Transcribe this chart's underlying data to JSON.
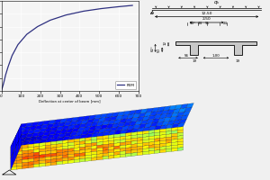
{
  "fig_bg": "#f0f0f0",
  "chart_bg": "#f5f5f5",
  "curve_color": "#2e3080",
  "curve_x": [
    0,
    1,
    3,
    6,
    10,
    15,
    22,
    35,
    55,
    85,
    130,
    185,
    250,
    330,
    420,
    510,
    600,
    670
  ],
  "curve_y": [
    0,
    1,
    3,
    6,
    10,
    16,
    25,
    38,
    55,
    72,
    88,
    100,
    110,
    118,
    124,
    128,
    131,
    133
  ],
  "xlim": [
    0,
    700
  ],
  "ylim": [
    0,
    140
  ],
  "xticks": [
    0,
    100,
    200,
    300,
    400,
    500,
    600,
    700
  ],
  "yticks": [
    0,
    20,
    40,
    60,
    80,
    100,
    120,
    140
  ],
  "xlabel": "Deflection at center of beam [mm]",
  "legend_label": "FEM",
  "dim_qk": "qₖ",
  "dim_1250": "12,50",
  "dim_250": "2,50",
  "dim_53": "53°",
  "dim_24a": "24",
  "dim_95": "95",
  "dim_24b": "24",
  "dim_12": "12",
  "dim_62": "62°",
  "dim_50": "50",
  "dim_56": "56",
  "dim_100": "1,00",
  "dim_19a": "19",
  "dim_19b": "19",
  "tt_gray": "#c8c8c8",
  "mesh_colors_top": "jet",
  "mesh_colors_front": "jet"
}
